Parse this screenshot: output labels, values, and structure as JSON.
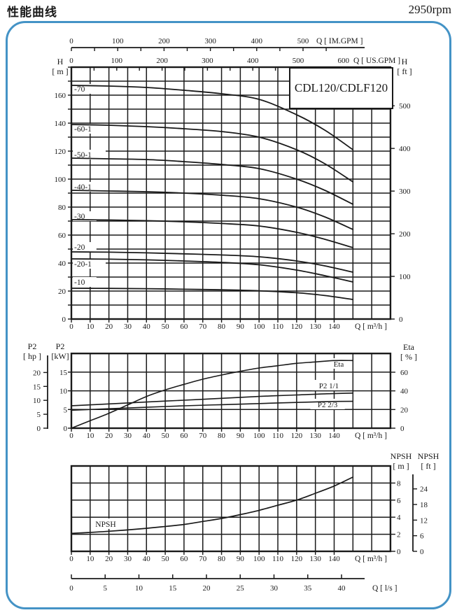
{
  "header": {
    "title": "性能曲线",
    "rpm": "2950rpm"
  },
  "chart_data": {
    "type": "line",
    "pump_model": "CDL120/CDLF120",
    "top_axes": {
      "im_gpm": {
        "unit": "Q [ IM.GPM ]",
        "ticks": [
          0,
          100,
          200,
          300,
          400,
          500
        ]
      },
      "us_gpm": {
        "unit": "Q [ US.GPM ]",
        "ticks": [
          0,
          100,
          200,
          300,
          400,
          500,
          600
        ]
      }
    },
    "x_axis": {
      "unit": "Q [ m³/h ]",
      "labels": [
        0,
        10,
        20,
        30,
        40,
        50,
        60,
        70,
        80,
        90,
        100,
        110,
        120,
        130,
        140
      ],
      "grid_min": 0,
      "grid_max": 170,
      "grid_step": 10
    },
    "ls_axis": {
      "unit": "Q [ l/s ]",
      "ticks": [
        0,
        5,
        10,
        15,
        20,
        25,
        30,
        35,
        40
      ]
    },
    "charts": [
      {
        "id": "head_capacity",
        "model": "CDL120/CDLF120",
        "y_left": {
          "header": [
            "H",
            "[ m ]"
          ],
          "labels": [
            0,
            20,
            40,
            60,
            80,
            100,
            120,
            140,
            160
          ],
          "grid_min": 0,
          "grid_max": 180,
          "grid_step": 10
        },
        "y_right": {
          "header": [
            "H",
            "[ ft ]"
          ],
          "labels": [
            0,
            100,
            200,
            300,
            400,
            500
          ]
        },
        "series": [
          {
            "label": "-70",
            "label_at": [
              1.5,
              164.5
            ],
            "points": [
              [
                0,
                167
              ],
              [
                20,
                166.5
              ],
              [
                40,
                165.5
              ],
              [
                60,
                163.5
              ],
              [
                80,
                161
              ],
              [
                100,
                157
              ],
              [
                120,
                146
              ],
              [
                135,
                135
              ],
              [
                150,
                121
              ]
            ]
          },
          {
            "label": "-60-1",
            "label_at": [
              1.5,
              136.0
            ],
            "points": [
              [
                0,
                139
              ],
              [
                20,
                138.5
              ],
              [
                40,
                137.5
              ],
              [
                60,
                136
              ],
              [
                80,
                134
              ],
              [
                100,
                130
              ],
              [
                120,
                121
              ],
              [
                135,
                111
              ],
              [
                150,
                98
              ]
            ]
          },
          {
            "label": "-50-1",
            "label_at": [
              1.5,
              117.5
            ],
            "points": [
              [
                0,
                115
              ],
              [
                20,
                114.5
              ],
              [
                40,
                114
              ],
              [
                60,
                112.5
              ],
              [
                80,
                110.5
              ],
              [
                100,
                107.5
              ],
              [
                120,
                100
              ],
              [
                135,
                92
              ],
              [
                150,
                82
              ]
            ]
          },
          {
            "label": "-40-1",
            "label_at": [
              1.5,
              94.5
            ],
            "points": [
              [
                0,
                92
              ],
              [
                20,
                91.5
              ],
              [
                40,
                91
              ],
              [
                60,
                90
              ],
              [
                80,
                88.5
              ],
              [
                100,
                86
              ],
              [
                120,
                80
              ],
              [
                135,
                73
              ],
              [
                150,
                64
              ]
            ]
          },
          {
            "label": "-30",
            "label_at": [
              1.5,
              73.5
            ],
            "points": [
              [
                0,
                71
              ],
              [
                20,
                70.8
              ],
              [
                40,
                70.3
              ],
              [
                60,
                69.5
              ],
              [
                80,
                68.3
              ],
              [
                100,
                66.5
              ],
              [
                120,
                62
              ],
              [
                135,
                57
              ],
              [
                150,
                51
              ]
            ]
          },
          {
            "label": "-20",
            "label_at": [
              1.5,
              51.5
            ],
            "points": [
              [
                0,
                48
              ],
              [
                20,
                47.8
              ],
              [
                40,
                47.3
              ],
              [
                60,
                46.6
              ],
              [
                80,
                45.8
              ],
              [
                100,
                44.5
              ],
              [
                120,
                41.5
              ],
              [
                135,
                38
              ],
              [
                150,
                33.5
              ]
            ]
          },
          {
            "label": "-20-1",
            "label_at": [
              1.5,
              39.5
            ],
            "points": [
              [
                0,
                43
              ],
              [
                20,
                42.8
              ],
              [
                40,
                42.3
              ],
              [
                60,
                41.5
              ],
              [
                80,
                40.5
              ],
              [
                100,
                38.8
              ],
              [
                120,
                35
              ],
              [
                135,
                31
              ],
              [
                150,
                26.5
              ]
            ]
          },
          {
            "label": "-10",
            "label_at": [
              1.5,
              26.5
            ],
            "points": [
              [
                0,
                22
              ],
              [
                20,
                21.9
              ],
              [
                40,
                21.7
              ],
              [
                60,
                21.3
              ],
              [
                80,
                20.9
              ],
              [
                100,
                20.2
              ],
              [
                120,
                18.8
              ],
              [
                135,
                16.8
              ],
              [
                150,
                14
              ]
            ]
          }
        ]
      },
      {
        "id": "power_efficiency",
        "y_hp": {
          "header": [
            "P2",
            "[ hp ]"
          ],
          "labels": [
            0,
            5,
            10,
            15,
            20
          ]
        },
        "y_kw": {
          "header": [
            "P2",
            "[kW]"
          ],
          "labels": [
            0,
            5,
            10,
            15
          ],
          "grid_min": 0,
          "grid_max": 20,
          "grid_step": 5
        },
        "y_eta": {
          "header": [
            "Eta",
            "[ % ]"
          ],
          "labels": [
            0,
            20,
            40,
            60
          ]
        },
        "series": [
          {
            "label": "Eta",
            "scale": "eta",
            "label_at": [
              142.4,
              67.5
            ],
            "points": [
              [
                0,
                0
              ],
              [
                10,
                8
              ],
              [
                20,
                16
              ],
              [
                30,
                25
              ],
              [
                40,
                34
              ],
              [
                50,
                41
              ],
              [
                60,
                47
              ],
              [
                70,
                52.5
              ],
              [
                80,
                57
              ],
              [
                90,
                61
              ],
              [
                100,
                64.5
              ],
              [
                110,
                67
              ],
              [
                120,
                69.5
              ],
              [
                130,
                71
              ],
              [
                140,
                72.5
              ],
              [
                150,
                72.5
              ]
            ]
          },
          {
            "label": "P2  1/1",
            "scale": "kw",
            "label_at": [
              137.2,
              11.05
            ],
            "points": [
              [
                0,
                6
              ],
              [
                20,
                6.5
              ],
              [
                40,
                7
              ],
              [
                60,
                7.5
              ],
              [
                80,
                8
              ],
              [
                100,
                8.5
              ],
              [
                120,
                8.9
              ],
              [
                135,
                9.2
              ],
              [
                150,
                9.4
              ]
            ]
          },
          {
            "label": "P2  2/3",
            "scale": "kw",
            "label_at": [
              136.5,
              6.0
            ],
            "points": [
              [
                0,
                4.8
              ],
              [
                20,
                5.2
              ],
              [
                40,
                5.6
              ],
              [
                60,
                6
              ],
              [
                80,
                6.3
              ],
              [
                100,
                6.6
              ],
              [
                120,
                6.9
              ],
              [
                135,
                7.1
              ],
              [
                150,
                7.2
              ]
            ]
          }
        ]
      },
      {
        "id": "npsh",
        "y_m": {
          "header": [
            "NPSH",
            "[ m ]"
          ],
          "labels": [
            0,
            2,
            4,
            6,
            8
          ],
          "grid_min": 0,
          "grid_max": 10,
          "grid_step": 2
        },
        "y_ft": {
          "header": [
            "NPSH",
            "[ ft ]"
          ],
          "labels": [
            0,
            6,
            12,
            18,
            24
          ]
        },
        "series": [
          {
            "label": "NPSH",
            "label_at": [
              12.3,
              2.95
            ],
            "points": [
              [
                0,
                2.1
              ],
              [
                20,
                2.35
              ],
              [
                40,
                2.7
              ],
              [
                60,
                3.15
              ],
              [
                70,
                3.5
              ],
              [
                80,
                3.85
              ],
              [
                90,
                4.3
              ],
              [
                100,
                4.8
              ],
              [
                110,
                5.4
              ],
              [
                120,
                6.0
              ],
              [
                130,
                6.8
              ],
              [
                140,
                7.65
              ],
              [
                150,
                8.7
              ]
            ]
          }
        ]
      }
    ],
    "colors": {
      "line": "#1a1a1a",
      "frame_border": "#4493c6"
    }
  }
}
